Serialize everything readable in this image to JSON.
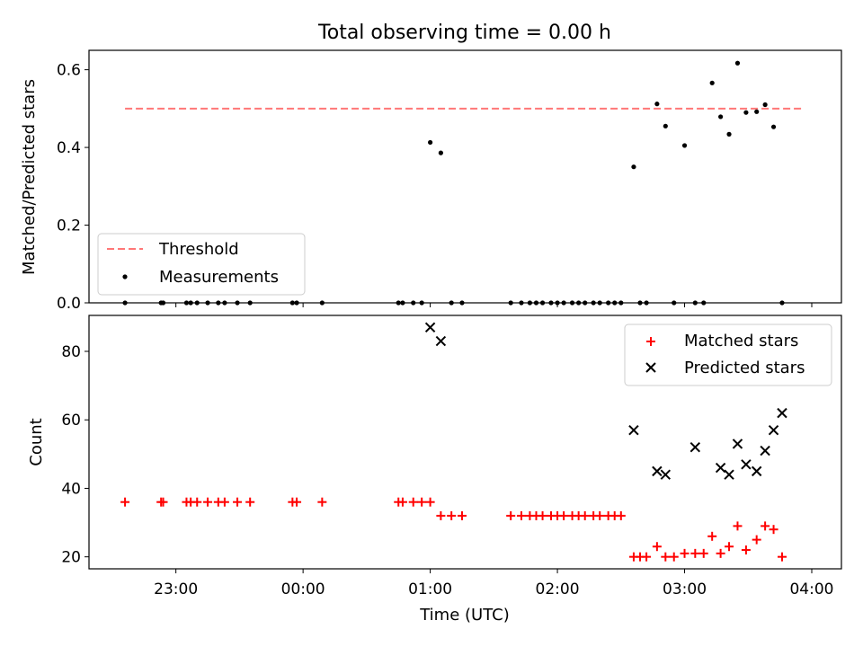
{
  "figure_title": "Total observing time = 0.00 h",
  "colors": {
    "threshold": "#ff7777",
    "measurements": "#000000",
    "matched": "#ff0000",
    "predicted": "#000000",
    "axes": "#000000",
    "background": "#ffffff"
  },
  "chart_data": [
    {
      "type": "scatter",
      "panel": "top",
      "xlabel": "",
      "ylabel": "Matched/Predicted stars",
      "ylim": [
        0,
        0.65
      ],
      "yticks": [
        0.0,
        0.2,
        0.4,
        0.6
      ],
      "ytick_labels": [
        "0.0",
        "0.2",
        "0.4",
        "0.6"
      ],
      "xlim": [
        "22:19",
        "04:14"
      ],
      "grid": false,
      "legend_position": "lower-left",
      "threshold": {
        "name": "Threshold",
        "y": 0.5,
        "x_start": "22:36",
        "x_end": "03:55"
      },
      "series": [
        {
          "name": "Measurements",
          "x": [
            "22:36",
            "22:53",
            "22:54",
            "23:05",
            "23:07",
            "23:10",
            "23:15",
            "23:20",
            "23:23",
            "23:29",
            "23:35",
            "23:55",
            "23:57",
            "00:09",
            "00:45",
            "00:47",
            "00:52",
            "00:56",
            "01:00",
            "01:05",
            "01:10",
            "01:15",
            "01:38",
            "01:43",
            "01:47",
            "01:50",
            "01:53",
            "01:57",
            "02:00",
            "02:03",
            "02:07",
            "02:10",
            "02:13",
            "02:17",
            "02:20",
            "02:24",
            "02:27",
            "02:30",
            "02:36",
            "02:39",
            "02:42",
            "02:47",
            "02:51",
            "02:55",
            "03:00",
            "03:05",
            "03:09",
            "03:13",
            "03:17",
            "03:21",
            "03:25",
            "03:29",
            "03:34",
            "03:38",
            "03:42",
            "03:46"
          ],
          "y": [
            0,
            0,
            0,
            0,
            0,
            0,
            0,
            0,
            0,
            0,
            0,
            0,
            0,
            0,
            0,
            0,
            0,
            0,
            0.413,
            0.386,
            0,
            0,
            0,
            0,
            0,
            0,
            0,
            0,
            0,
            0,
            0,
            0,
            0,
            0,
            0,
            0,
            0,
            0,
            0.35,
            0,
            0,
            0.512,
            0.455,
            0,
            0.405,
            0,
            0,
            0.566,
            0.479,
            0.434,
            0.617,
            0.49,
            0.492,
            0.51,
            0.453,
            0
          ]
        }
      ]
    },
    {
      "type": "scatter",
      "panel": "bottom",
      "xlabel": "Time (UTC)",
      "ylabel": "Count",
      "ylim": [
        16.5,
        90.5
      ],
      "yticks": [
        20,
        40,
        60,
        80
      ],
      "ytick_labels": [
        "20",
        "40",
        "60",
        "80"
      ],
      "xticks": [
        "23:00",
        "00:00",
        "01:00",
        "02:00",
        "03:00",
        "04:00"
      ],
      "xtick_labels": [
        "23:00",
        "00:00",
        "01:00",
        "02:00",
        "03:00",
        "04:00"
      ],
      "xlim": [
        "22:19",
        "04:14"
      ],
      "grid": false,
      "legend_position": "upper-right",
      "series": [
        {
          "name": "Matched stars",
          "x": [
            "22:36",
            "22:53",
            "22:54",
            "23:05",
            "23:07",
            "23:10",
            "23:15",
            "23:20",
            "23:23",
            "23:29",
            "23:35",
            "23:55",
            "23:57",
            "00:09",
            "00:45",
            "00:47",
            "00:52",
            "00:56",
            "01:00",
            "01:05",
            "01:10",
            "01:15",
            "01:38",
            "01:43",
            "01:47",
            "01:50",
            "01:53",
            "01:57",
            "02:00",
            "02:03",
            "02:07",
            "02:10",
            "02:13",
            "02:17",
            "02:20",
            "02:24",
            "02:27",
            "02:30",
            "02:36",
            "02:39",
            "02:42",
            "02:47",
            "02:51",
            "02:55",
            "03:00",
            "03:05",
            "03:09",
            "03:13",
            "03:17",
            "03:21",
            "03:25",
            "03:29",
            "03:34",
            "03:38",
            "03:42",
            "03:46"
          ],
          "y": [
            36,
            36,
            36,
            36,
            36,
            36,
            36,
            36,
            36,
            36,
            36,
            36,
            36,
            36,
            36,
            36,
            36,
            36,
            36,
            32,
            32,
            32,
            32,
            32,
            32,
            32,
            32,
            32,
            32,
            32,
            32,
            32,
            32,
            32,
            32,
            32,
            32,
            32,
            20,
            20,
            20,
            23,
            20,
            20,
            21,
            21,
            21,
            26,
            21,
            23,
            29,
            22,
            25,
            29,
            28,
            20
          ]
        },
        {
          "name": "Predicted stars",
          "x": [
            "01:00",
            "01:05",
            "02:36",
            "02:47",
            "02:51",
            "03:05",
            "03:17",
            "03:21",
            "03:25",
            "03:29",
            "03:34",
            "03:38",
            "03:42",
            "03:46"
          ],
          "y": [
            87,
            83,
            57,
            45,
            44,
            52,
            46,
            44,
            53,
            47,
            45,
            51,
            57,
            62
          ]
        }
      ]
    }
  ]
}
